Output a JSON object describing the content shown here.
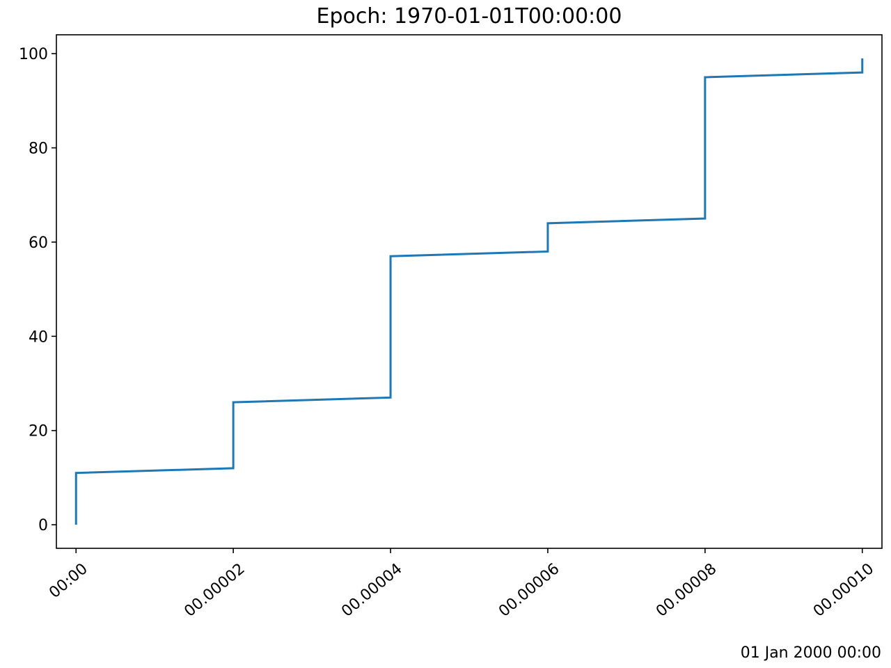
{
  "chart_data": {
    "type": "line",
    "drawstyle": "steps-post",
    "title": "Epoch: 1970-01-01T00:00:00",
    "xlabel": "",
    "ylabel": "",
    "x_offset_label": "01 Jan 2000 00:00",
    "x_ticks": [
      "00:00",
      "00.00002",
      "00.00004",
      "00.00006",
      "00.00008",
      "00.00010"
    ],
    "y_ticks": [
      "0",
      "20",
      "40",
      "60",
      "80",
      "100"
    ],
    "xlim": [
      -2.5e-06,
      0.0001025
    ],
    "ylim": [
      -5,
      104
    ],
    "grid": false,
    "series": [
      {
        "color": "#1f77b4",
        "points": [
          [
            0.0,
            0
          ],
          [
            0.0,
            11
          ],
          [
            2e-05,
            12
          ],
          [
            2e-05,
            26
          ],
          [
            4e-05,
            27
          ],
          [
            4e-05,
            57
          ],
          [
            6e-05,
            58
          ],
          [
            6e-05,
            64
          ],
          [
            8e-05,
            65
          ],
          [
            8e-05,
            95
          ],
          [
            0.0001,
            96
          ],
          [
            0.0001,
            99
          ]
        ]
      }
    ]
  }
}
